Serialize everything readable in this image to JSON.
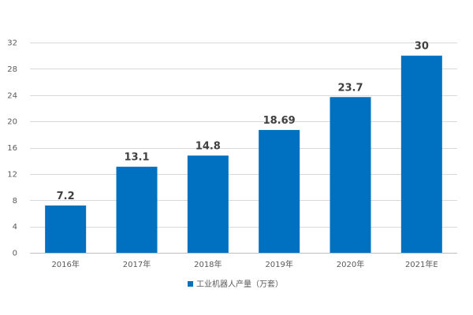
{
  "chart_data": {
    "type": "bar",
    "categories": [
      "2016年",
      "2017年",
      "2018年",
      "2019年",
      "2020年",
      "2021年E"
    ],
    "series": [
      {
        "name": "工业机器人产量（万套）",
        "values": [
          7.2,
          13.1,
          14.8,
          18.69,
          23.7,
          30
        ],
        "value_labels": [
          "7.2",
          "13.1",
          "14.8",
          "18.69",
          "23.7",
          "30"
        ]
      }
    ],
    "ylim": [
      0,
      32
    ],
    "yticks": [
      0,
      4,
      8,
      12,
      16,
      20,
      24,
      28,
      32
    ],
    "grid": true,
    "legend_position": "bottom",
    "bar_color": "#0070C0"
  }
}
